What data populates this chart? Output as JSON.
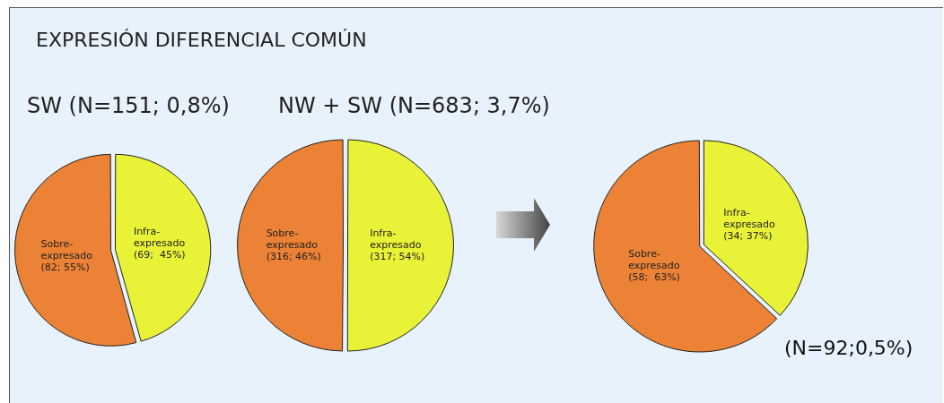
{
  "chart_data": [
    {
      "type": "pie",
      "title": "EXPRESIÓN DIFERENCIAL COMÚN",
      "subtitle": "SW (N=151; 0,8%)",
      "categories": [
        "Infra-expresado",
        "Sobre-expresado"
      ],
      "values": [
        69,
        82
      ],
      "colors": [
        "#e8f237",
        "#ec8235"
      ],
      "value_labels": [
        "(69;  45%)",
        "(82; 55%)"
      ],
      "legend": false
    },
    {
      "type": "pie",
      "title": "NW + SW (N=683; 3,7%)",
      "categories": [
        "Infra-expresado",
        "Sobre-expresado"
      ],
      "values": [
        317,
        316
      ],
      "colors": [
        "#e8f237",
        "#ec8235"
      ],
      "value_labels": [
        "(317; 54%)",
        "(316; 46%)"
      ],
      "legend": false
    },
    {
      "type": "pie",
      "categories": [
        "Infra-expresado",
        "Sobre-expresado"
      ],
      "values": [
        34,
        58
      ],
      "colors": [
        "#e8f237",
        "#ec8235"
      ],
      "value_labels": [
        "(34; 37%)",
        "(58;  63%)"
      ],
      "annotations": [
        "(N=92;0,5%)"
      ],
      "legend": false
    }
  ]
}
